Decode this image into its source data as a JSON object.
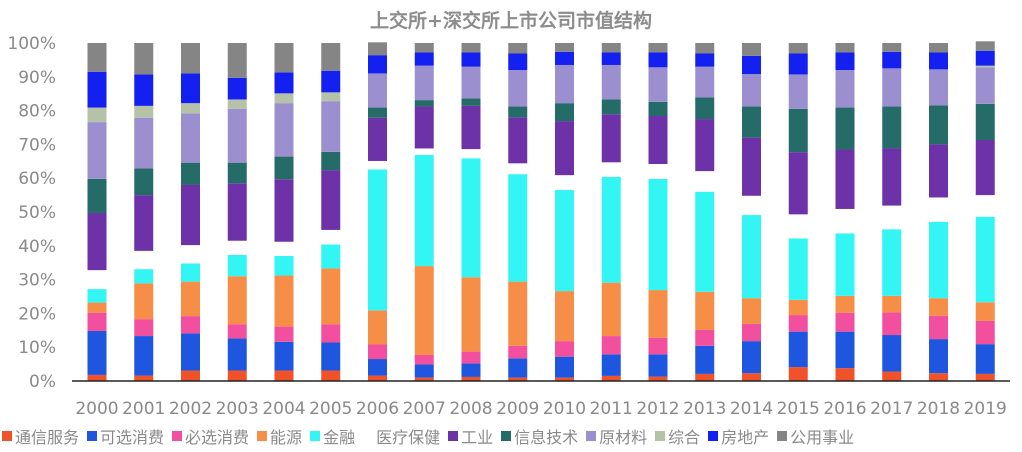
{
  "chart_data": {
    "type": "bar",
    "stacked": true,
    "title": "上交所+深交所上市公司市值结构",
    "xlabel": "",
    "ylabel": "",
    "ylim": [
      0,
      100
    ],
    "yticks": [
      "0%",
      "10%",
      "20%",
      "30%",
      "40%",
      "50%",
      "60%",
      "70%",
      "80%",
      "90%",
      "100%"
    ],
    "grid": false,
    "legend_position": "bottom",
    "categories": [
      "2000",
      "2001",
      "2002",
      "2003",
      "2004",
      "2005",
      "2006",
      "2007",
      "2008",
      "2009",
      "2010",
      "2011",
      "2012",
      "2013",
      "2014",
      "2015",
      "2016",
      "2017",
      "2018",
      "2019"
    ],
    "series": [
      {
        "name": "通信服务",
        "color": "#f0522a",
        "values": [
          1.8,
          1.6,
          3.1,
          3.1,
          3.1,
          3.1,
          1.6,
          1.0,
          1.2,
          1.0,
          1.0,
          1.5,
          1.3,
          2.1,
          2.3,
          4.1,
          3.8,
          2.8,
          2.3,
          2.1
        ]
      },
      {
        "name": "可选消费",
        "color": "#1f56e0",
        "values": [
          13.0,
          11.7,
          11.0,
          9.5,
          8.5,
          8.3,
          4.9,
          3.9,
          4.0,
          5.7,
          6.2,
          6.4,
          6.6,
          8.3,
          9.5,
          10.5,
          10.8,
          10.8,
          10.1,
          8.8
        ]
      },
      {
        "name": "必选消费",
        "color": "#f2509e",
        "values": [
          5.4,
          5.0,
          5.1,
          4.2,
          4.5,
          5.4,
          4.3,
          2.8,
          3.5,
          3.7,
          4.6,
          5.4,
          4.9,
          4.7,
          5.1,
          4.9,
          5.6,
          6.7,
          6.9,
          6.9
        ]
      },
      {
        "name": "能源",
        "color": "#f78e47",
        "values": [
          3.0,
          10.6,
          10.2,
          14.2,
          15.1,
          16.5,
          10.1,
          26.3,
          22.0,
          19.0,
          14.8,
          15.8,
          14.1,
          11.3,
          7.6,
          4.5,
          5.0,
          4.9,
          5.2,
          5.5
        ]
      },
      {
        "name": "金融",
        "color": "#33f6f4",
        "values": [
          4.0,
          4.2,
          5.4,
          6.3,
          5.8,
          7.1,
          41.7,
          32.9,
          35.2,
          31.8,
          29.9,
          31.3,
          32.9,
          29.6,
          24.6,
          18.2,
          18.5,
          19.7,
          22.6,
          25.3
        ]
      },
      {
        "name": "医疗保健",
        "color": "#ffffff",
        "values": [
          5.6,
          5.4,
          5.4,
          4.2,
          4.2,
          4.3,
          2.5,
          1.9,
          2.7,
          3.2,
          4.4,
          4.3,
          4.4,
          6.1,
          5.7,
          7.1,
          7.2,
          7.0,
          7.2,
          6.4
        ]
      },
      {
        "name": "工业",
        "color": "#6e32a8",
        "values": [
          16.9,
          16.5,
          17.8,
          17.0,
          18.5,
          17.7,
          12.8,
          12.4,
          12.8,
          13.6,
          16.0,
          14.2,
          14.2,
          15.4,
          17.2,
          18.4,
          17.6,
          16.9,
          15.7,
          16.3
        ]
      },
      {
        "name": "信息技术",
        "color": "#256b68",
        "values": [
          10.1,
          7.9,
          6.6,
          6.1,
          6.7,
          5.4,
          3.0,
          1.9,
          2.2,
          3.2,
          5.3,
          4.4,
          4.2,
          6.4,
          9.2,
          12.8,
          12.4,
          12.4,
          11.5,
          10.7
        ]
      },
      {
        "name": "原材料",
        "color": "#9b8fcf",
        "values": [
          16.8,
          15.0,
          14.6,
          15.9,
          15.8,
          15.0,
          10.1,
          10.2,
          9.4,
          10.8,
          11.3,
          10.2,
          10.2,
          9.1,
          9.6,
          10.2,
          11.1,
          11.3,
          10.7,
          10.8
        ]
      },
      {
        "name": "综合",
        "color": "#b5c2a8",
        "values": [
          4.3,
          3.5,
          3.0,
          2.8,
          2.9,
          2.6,
          0,
          0,
          0,
          0,
          0,
          0,
          0,
          0,
          0,
          0,
          0,
          0,
          0,
          0.5
        ]
      },
      {
        "name": "房地产",
        "color": "#1420f0",
        "values": [
          10.6,
          9.3,
          8.8,
          6.4,
          6.2,
          6.4,
          5.4,
          3.9,
          4.2,
          4.9,
          3.9,
          3.7,
          4.4,
          3.9,
          5.4,
          6.2,
          5.2,
          4.9,
          5.0,
          4.4
        ]
      },
      {
        "name": "公用事业",
        "color": "#858585",
        "values": [
          8.5,
          9.3,
          9.0,
          10.3,
          8.7,
          8.2,
          3.8,
          2.8,
          2.8,
          3.1,
          2.6,
          2.8,
          2.8,
          3.1,
          3.8,
          3.1,
          2.8,
          2.6,
          2.8,
          2.8
        ]
      }
    ]
  }
}
